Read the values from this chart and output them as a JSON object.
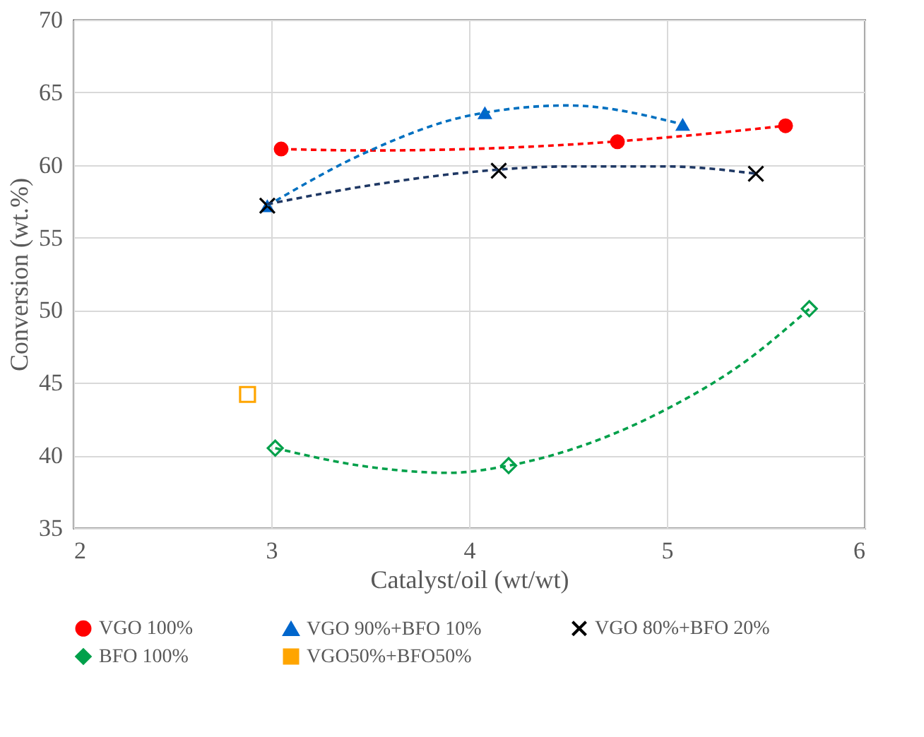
{
  "chart_data": {
    "type": "scatter",
    "xlabel": "Catalyst/oil (wt/wt)",
    "ylabel": "Conversion (wt.%)",
    "xlim": [
      2,
      6
    ],
    "xticks": [
      2,
      3,
      4,
      5,
      6
    ],
    "ylim": [
      35,
      70
    ],
    "yticks": [
      35,
      40,
      45,
      50,
      55,
      60,
      65,
      70
    ],
    "grid": true,
    "legend": "bottom",
    "series": [
      {
        "name": "VGO 100%",
        "color": "#ff0000",
        "marker": "circle",
        "x": [
          3.05,
          4.75,
          5.6
        ],
        "values": [
          61.1,
          61.6,
          62.7
        ]
      },
      {
        "name": "VGO 90%+BFO 10%",
        "color": "#0066cc",
        "marker": "triangle",
        "x": [
          2.98,
          4.08,
          5.08
        ],
        "values": [
          57.2,
          63.6,
          62.8
        ]
      },
      {
        "name": "VGO 80%+BFO 20%",
        "color": "#000000",
        "marker": "cross",
        "x": [
          2.98,
          4.15,
          5.45
        ],
        "values": [
          57.2,
          59.6,
          59.4
        ]
      },
      {
        "name": "BFO 100%",
        "color": "#00a04a",
        "marker": "diamond",
        "x": [
          3.02,
          4.2,
          5.72
        ],
        "values": [
          40.5,
          39.3,
          50.1
        ]
      },
      {
        "name": "VGO50%+BFO50%",
        "color": "#ffa500",
        "marker": "square",
        "x": [
          2.88
        ],
        "values": [
          44.2
        ]
      },
      {
        "type": "line",
        "color": "#ff0000",
        "line_style": "dashed",
        "x": [
          3.05,
          3.5,
          4.0,
          4.5,
          5.0,
          5.6
        ],
        "values": [
          61.1,
          61.0,
          61.1,
          61.4,
          61.9,
          62.7
        ]
      },
      {
        "type": "line",
        "color": "#0070c0",
        "line_style": "dashed",
        "x": [
          2.98,
          3.5,
          4.0,
          4.5,
          5.08
        ],
        "values": [
          57.2,
          61.0,
          63.4,
          64.1,
          62.8
        ]
      },
      {
        "type": "line",
        "color": "#1f3864",
        "line_style": "dashed",
        "x": [
          2.98,
          3.5,
          4.0,
          4.5,
          5.0,
          5.45
        ],
        "values": [
          57.3,
          58.6,
          59.5,
          59.9,
          59.9,
          59.4
        ]
      },
      {
        "type": "line",
        "color": "#00a04a",
        "line_style": "dashed",
        "x": [
          3.02,
          3.5,
          3.9,
          4.2,
          4.6,
          5.0,
          5.4,
          5.72
        ],
        "values": [
          40.5,
          39.2,
          38.8,
          39.3,
          40.8,
          43.2,
          46.5,
          50.1
        ]
      }
    ]
  }
}
